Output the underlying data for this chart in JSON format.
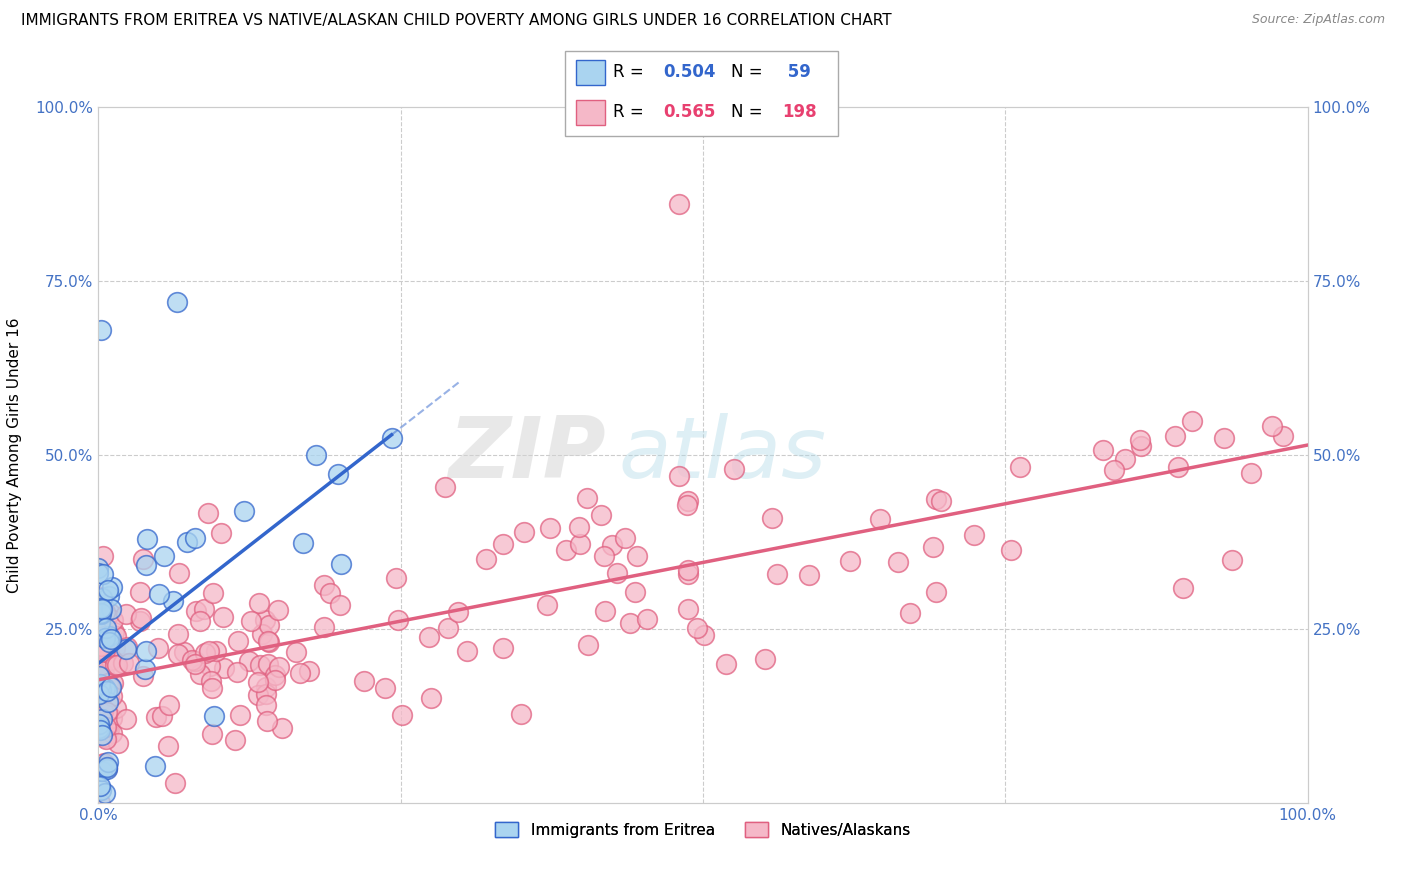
{
  "title": "IMMIGRANTS FROM ERITREA VS NATIVE/ALASKAN CHILD POVERTY AMONG GIRLS UNDER 16 CORRELATION CHART",
  "source": "Source: ZipAtlas.com",
  "ylabel": "Child Poverty Among Girls Under 16",
  "series1_color": "#aad4f0",
  "series2_color": "#f5b8c8",
  "line1_color": "#3366cc",
  "line2_color": "#e06080",
  "R1": 0.504,
  "N1": 59,
  "R2": 0.565,
  "N2": 198,
  "background_color": "#ffffff",
  "grid_color": "#cccccc",
  "legend_label1": "Immigrants from Eritrea",
  "legend_label2": "Natives/Alaskans"
}
